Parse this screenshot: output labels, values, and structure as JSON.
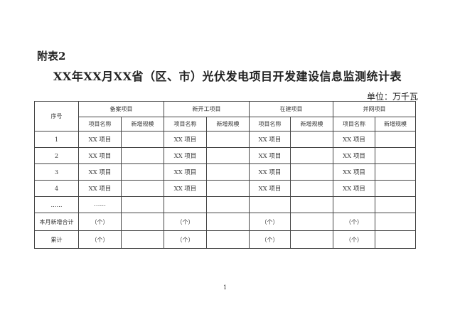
{
  "annex_label": "附表2",
  "title": "XX年XX月XX省（区、市）光伏发电项目开发建设信息监测统计表",
  "unit": "单位：万千瓦",
  "table": {
    "seq_header": "序号",
    "groups": [
      "备案项目",
      "新开工项目",
      "在建项目",
      "并网项目"
    ],
    "sub_headers": [
      "项目名称",
      "新增规模"
    ],
    "rows": [
      {
        "seq": "1",
        "name": "XX 项目"
      },
      {
        "seq": "2",
        "name": "XX 项目"
      },
      {
        "seq": "3",
        "name": "XX 项目"
      },
      {
        "seq": "4",
        "name": "XX 项目"
      },
      {
        "seq": "……",
        "name": "……"
      }
    ],
    "totals": [
      {
        "label": "本月新增合计",
        "count": "（个）"
      },
      {
        "label": "累计",
        "count": "（个）"
      }
    ]
  },
  "page_number": "1"
}
